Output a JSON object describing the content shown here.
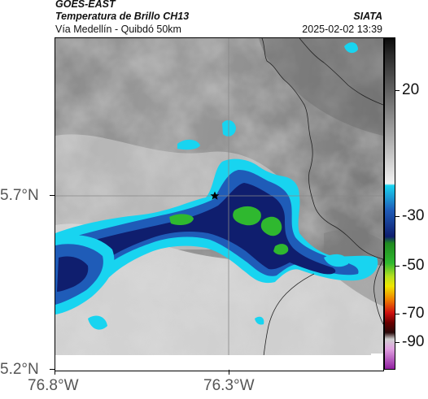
{
  "header": {
    "satellite": "GOES-EAST",
    "product": "Temperatura de Brillo CH13",
    "route": "Vía Medellín - Quibdó 50km",
    "org": "SIATA",
    "datetime": "2025-02-02 13:39"
  },
  "axes": {
    "x_ticks": [
      {
        "label": "76.8°W",
        "value": -76.8
      },
      {
        "label": "76.3°W",
        "value": -76.3
      }
    ],
    "y_ticks": [
      {
        "label": "5.7°N",
        "value": 5.7
      },
      {
        "label": "5.2°N",
        "value": 5.2
      }
    ]
  },
  "colorbar": {
    "ticks": [
      {
        "label": "20",
        "value": 20
      },
      {
        "label": "-30",
        "value": -30
      },
      {
        "label": "-50",
        "value": -50
      },
      {
        "label": "-70",
        "value": -70
      },
      {
        "label": "-90",
        "value": -90
      }
    ],
    "colors": {
      "gray_warm": "#2a2a2a",
      "gray_cold": "#f2f2f2",
      "cyan": "#18d4f0",
      "blue": "#1f5cb8",
      "navy": "#0f1e6e",
      "green": "#2fb82f",
      "yellow": "#f0e600",
      "orange": "#f08000",
      "red": "#d01010",
      "dark": "#2a0a0a",
      "magenta": "#c040c0"
    }
  },
  "map": {
    "marker_icon": "star-icon"
  }
}
